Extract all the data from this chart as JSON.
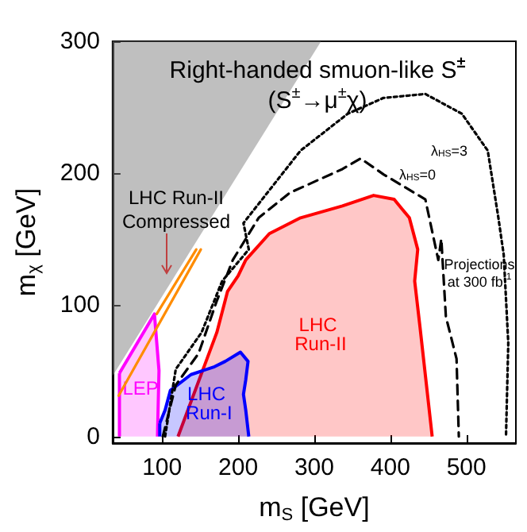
{
  "chart_data": {
    "type": "area",
    "title": "Right-handed smuon-like S$^{±}$",
    "subtitle": "(S$^{±}$→μ$^{±}$χ)",
    "xlabel": "m$_{S}$ [GeV]",
    "ylabel": "m$_{χ}$ [GeV]",
    "xlim": [
      35,
      565
    ],
    "ylim": [
      -5,
      300
    ],
    "xticks": [
      100,
      200,
      300,
      400,
      500
    ],
    "yticks": [
      0,
      100,
      200,
      300
    ],
    "grid": false,
    "legend": false,
    "series": [
      {
        "color": "#808080",
        "x": [
          35,
          35,
          309
        ],
        "values": [
          46,
          300,
          300
        ]
      },
      {
        "name": "LEP",
        "color": "#ff00ff",
        "x": [
          44,
          90,
          96,
          94,
          44
        ],
        "values": [
          48,
          93,
          50,
          0,
          0
        ]
      },
      {
        "name": "LHC Run-II",
        "color": "#ff0000",
        "x": [
          121,
          172,
          186,
          200,
          210,
          241,
          282,
          337,
          378,
          405,
          425,
          436,
          432,
          439,
          455
        ],
        "values": [
          0,
          79,
          110,
          122,
          134,
          154,
          166,
          175,
          183,
          180,
          166,
          142,
          118,
          83,
          0
        ]
      },
      {
        "name": "LHC Run-I",
        "color": "#0000ff",
        "x": [
          97,
          104,
          111,
          138,
          169,
          183,
          203,
          213,
          210,
          207,
          210,
          214,
          97
        ],
        "values": [
          10,
          20,
          35,
          47,
          53,
          57,
          64,
          57,
          43,
          32,
          20,
          0,
          0
        ]
      },
      {
        "type": "line",
        "color": "#ff8c00",
        "x": [
          43,
          151
        ],
        "values": [
          31,
          142
        ]
      },
      {
        "type": "line",
        "color": "#ff8c00",
        "x": [
          93,
          145
        ],
        "values": [
          93,
          142
        ]
      },
      {
        "type": "line",
        "line_style": "dashed",
        "color": "#000000",
        "x": [
          101,
          118,
          148,
          172,
          193,
          227,
          268,
          337,
          361,
          391,
          446,
          463,
          467,
          473,
          487,
          490
        ],
        "values": [
          0,
          39,
          63,
          103,
          134,
          166,
          185,
          203,
          211,
          199,
          180,
          134,
          150,
          91,
          59,
          0
        ]
      },
      {
        "type": "line",
        "line_style": "dotted",
        "color": "#000000",
        "x": [
          104,
          118,
          152,
          179,
          214,
          207,
          282,
          344,
          391,
          446,
          494,
          528,
          542,
          549,
          555,
          552
        ],
        "values": [
          0,
          51,
          79,
          118,
          142,
          162,
          217,
          245,
          257,
          260,
          245,
          217,
          166,
          138,
          71,
          0
        ]
      }
    ],
    "annotations": [
      "LHC Run-II Compressed",
      "λ$_{HS}$=0",
      "λ$_{HS}$=3",
      "Projections at 300 fb$^{-1}$"
    ]
  }
}
